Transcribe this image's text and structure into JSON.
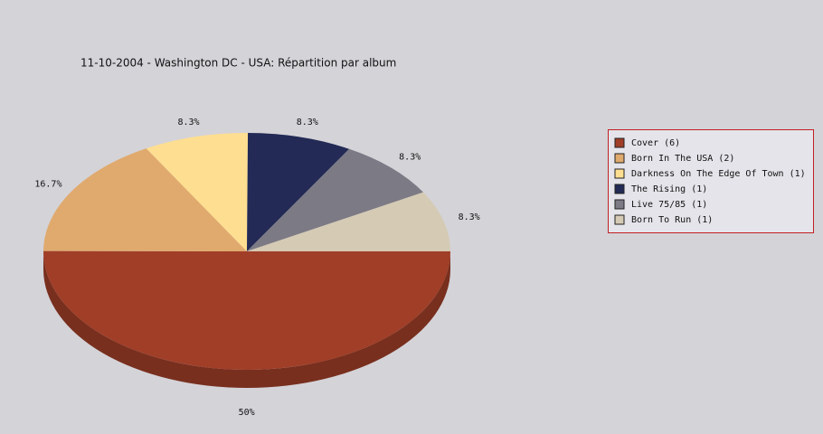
{
  "chart_data": {
    "type": "pie",
    "title": "11-10-2004 - Washington DC - USA:  Répartition par album",
    "categories": [
      "Cover (6)",
      "Born In The USA (2)",
      "Darkness On The Edge Of Town (1)",
      "The Rising (1)",
      "Live 75/85 (1)",
      "Born To Run (1)"
    ],
    "values": [
      50,
      16.7,
      8.3,
      8.3,
      8.3,
      8.3
    ],
    "value_labels": [
      "50%",
      "16.7%",
      "8.3%",
      "8.3%",
      "8.3%",
      "8.3%"
    ],
    "colors": [
      "#a03e28",
      "#e0aa6e",
      "#fede90",
      "#222a55",
      "#7c7a85",
      "#d5cab4"
    ],
    "legend": "right"
  }
}
